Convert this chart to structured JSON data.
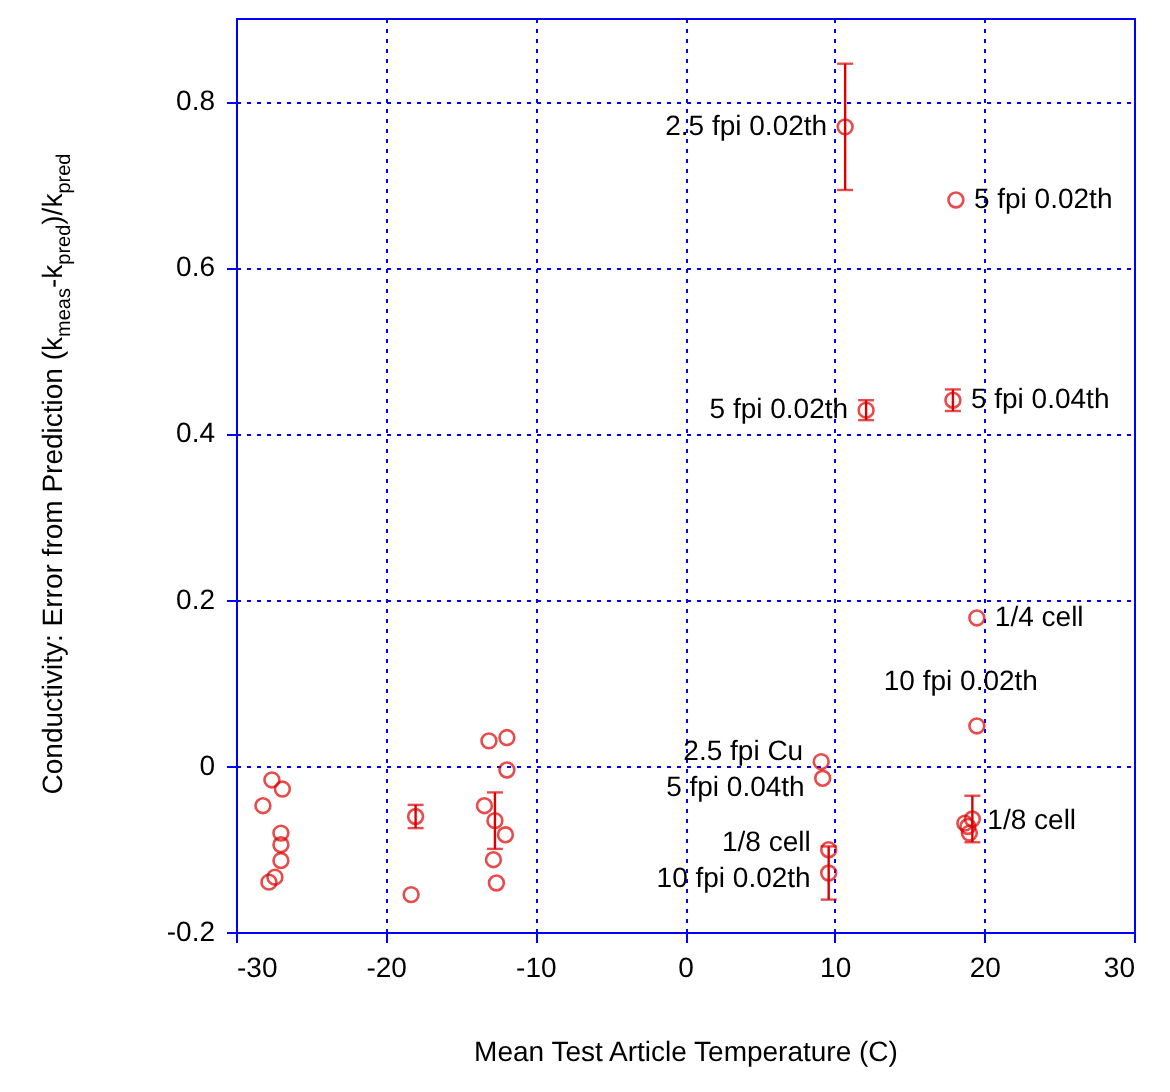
{
  "chart_data": {
    "type": "scatter",
    "xlabel": "Mean Test Article Temperature (C)",
    "ylabel": "Conductivity: Error from Prediction (k$_{meas}$-k$_{pred}$)/k$_{pred}$",
    "xlim": [
      -30,
      30
    ],
    "xticks": [
      -30,
      -20,
      -10,
      0,
      10,
      20,
      30
    ],
    "ylim": [
      -0.2,
      0.9
    ],
    "yticks": [
      -0.2,
      0,
      0.2,
      0.4,
      0.6,
      0.8
    ],
    "grid": true,
    "marker": "circle",
    "series": [
      {
        "color": "#dd0000",
        "x": [
          -27.6,
          -26.9,
          -28.2,
          -27.0,
          -27.0,
          -27.0,
          -27.4,
          -27.8,
          -18.0,
          -18.3,
          -13.1,
          -11.9,
          -11.9,
          -13.4,
          -12.7,
          -12.0,
          -12.8,
          -12.6,
          9.1,
          9.2,
          9.6,
          9.6,
          19.5,
          19.2,
          18.9,
          19.0,
          18.7,
          10.7,
          18.1,
          12.1,
          17.9,
          19.5
        ],
        "values": [
          -0.017,
          -0.028,
          -0.048,
          -0.081,
          -0.095,
          -0.114,
          -0.134,
          -0.14,
          -0.061,
          -0.155,
          0.03,
          0.034,
          -0.005,
          -0.048,
          -0.066,
          -0.083,
          -0.113,
          -0.141,
          0.005,
          -0.015,
          -0.101,
          -0.129,
          0.048,
          -0.064,
          -0.073,
          -0.081,
          -0.069,
          0.769,
          0.681,
          0.428,
          0.44,
          0.178
        ],
        "errors": [
          null,
          null,
          null,
          null,
          null,
          null,
          null,
          null,
          0.014,
          null,
          null,
          null,
          null,
          null,
          0.034,
          null,
          null,
          null,
          null,
          null,
          null,
          0.032,
          null,
          0.028,
          null,
          null,
          null,
          0.076,
          null,
          0.012,
          0.013,
          null
        ]
      }
    ],
    "annotations": [
      {
        "text": "2.5 fpi 0.02th",
        "x": 10.7,
        "y": 0.769
      },
      {
        "text": "5 fpi 0.02th",
        "x": 18.1,
        "y": 0.681
      },
      {
        "text": "5 fpi 0.02th",
        "x": 12.1,
        "y": 0.428
      },
      {
        "text": "5 fpi 0.04th",
        "x": 17.9,
        "y": 0.44
      },
      {
        "text": "1/4 cell",
        "x": 19.5,
        "y": 0.178
      },
      {
        "text": "10 fpi 0.02th",
        "x": 19.5,
        "y": 0.048
      },
      {
        "text": "2.5 fpi Cu",
        "x": 9.1,
        "y": 0.005
      },
      {
        "text": "5 fpi 0.04th",
        "x": 9.2,
        "y": -0.015
      },
      {
        "text": "1/8 cell",
        "x": 9.6,
        "y": -0.101
      },
      {
        "text": "10 fpi 0.02th",
        "x": 9.6,
        "y": -0.129
      },
      {
        "text": "1/8 cell",
        "x": 19.0,
        "y": -0.066
      }
    ]
  }
}
